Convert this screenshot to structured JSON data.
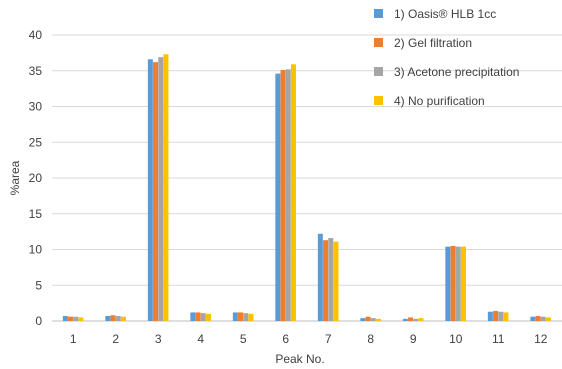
{
  "chart_data": {
    "type": "bar",
    "title": "",
    "xlabel": "Peak No.",
    "ylabel": "%area",
    "ylim": [
      0,
      40
    ],
    "yticks": [
      0,
      5,
      10,
      15,
      20,
      25,
      30,
      35,
      40
    ],
    "grid": true,
    "legend_position": "top-right",
    "categories": [
      "1",
      "2",
      "3",
      "4",
      "5",
      "6",
      "7",
      "8",
      "9",
      "10",
      "11",
      "12"
    ],
    "series": [
      {
        "name": "1) Oasis® HLB 1cc",
        "color": "#5b9bd5",
        "values": [
          0.7,
          0.7,
          36.6,
          1.2,
          1.2,
          34.6,
          12.2,
          0.4,
          0.3,
          10.4,
          1.3,
          0.6
        ]
      },
      {
        "name": "2) Gel filtration",
        "color": "#ed7d31",
        "values": [
          0.6,
          0.8,
          36.2,
          1.2,
          1.2,
          35.1,
          11.3,
          0.6,
          0.5,
          10.5,
          1.4,
          0.7
        ]
      },
      {
        "name": "3) Acetone precipitation",
        "color": "#a5a5a5",
        "values": [
          0.6,
          0.7,
          36.9,
          1.1,
          1.1,
          35.2,
          11.6,
          0.4,
          0.3,
          10.4,
          1.3,
          0.6
        ]
      },
      {
        "name": "4) No purification",
        "color": "#ffc000",
        "values": [
          0.5,
          0.6,
          37.3,
          1.0,
          1.0,
          35.9,
          11.1,
          0.3,
          0.4,
          10.4,
          1.2,
          0.5
        ]
      }
    ]
  }
}
